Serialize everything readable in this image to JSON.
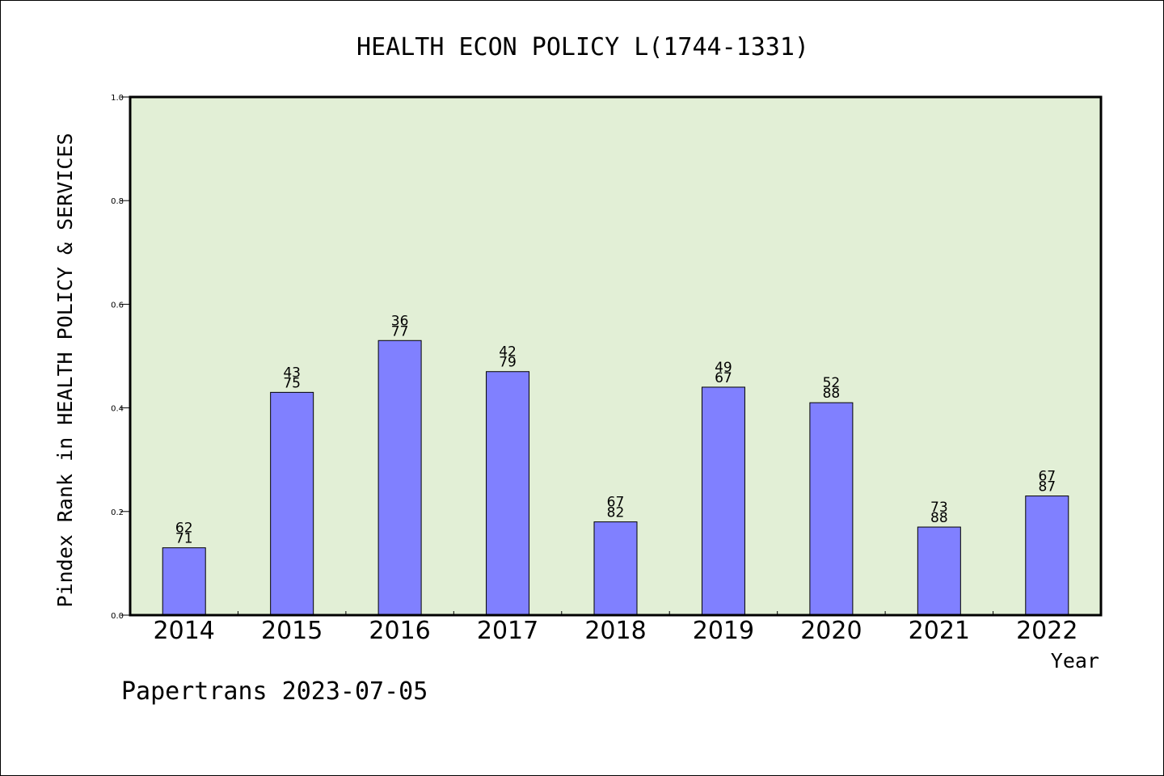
{
  "chart_data": {
    "type": "bar",
    "title": "HEALTH ECON POLICY L(1744-1331)",
    "xlabel": "Year",
    "ylabel": "Pindex Rank in HEALTH POLICY & SERVICES",
    "ylim": [
      0,
      1.0
    ],
    "yticks": [
      "0.0",
      "0.2",
      "0.4",
      "0.6",
      "0.8",
      "1.0"
    ],
    "categories": [
      "2014",
      "2015",
      "2016",
      "2017",
      "2018",
      "2019",
      "2020",
      "2021",
      "2022"
    ],
    "values": [
      0.13,
      0.43,
      0.53,
      0.47,
      0.18,
      0.44,
      0.41,
      0.17,
      0.23
    ],
    "label_top": [
      "62",
      "43",
      "36",
      "42",
      "67",
      "49",
      "52",
      "73",
      "67"
    ],
    "label_bottom": [
      "71",
      "75",
      "77",
      "79",
      "82",
      "67",
      "88",
      "88",
      "87"
    ],
    "grid": false,
    "colors": {
      "bar": "#8080ff",
      "plot_background": "#e2efd6"
    }
  },
  "footer": {
    "text": "Papertrans 2023-07-05"
  }
}
